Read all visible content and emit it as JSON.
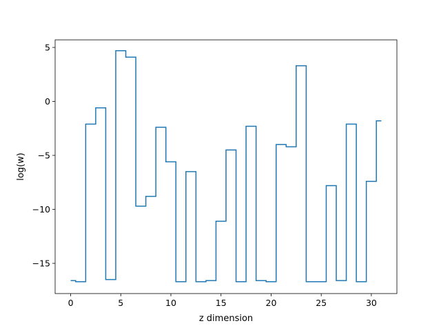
{
  "chart_data": {
    "type": "line",
    "drawstyle": "steps-mid",
    "title": "",
    "xlabel": "z dimension",
    "ylabel": "log(w)",
    "xlim": [
      -1.55,
      32.55
    ],
    "ylim": [
      -17.8,
      5.7
    ],
    "xticks": [
      0,
      5,
      10,
      15,
      20,
      25,
      30
    ],
    "yticks": [
      5,
      0,
      -5,
      -10,
      -15
    ],
    "ytick_labels": [
      "5",
      "0",
      "−5",
      "−10",
      "−15"
    ],
    "grid": false,
    "line_color": "#1f77b4",
    "series": [
      {
        "x": [
          0,
          1,
          2,
          3,
          4,
          5,
          6,
          7,
          8,
          9,
          10,
          11,
          12,
          13,
          14,
          15,
          16,
          17,
          18,
          19,
          20,
          21,
          22,
          23,
          24,
          25,
          26,
          27,
          28,
          29,
          30,
          31
        ],
        "values": [
          -16.6,
          -16.7,
          -2.1,
          -0.6,
          -16.5,
          4.7,
          4.1,
          -9.7,
          -8.8,
          -2.4,
          -5.6,
          -16.7,
          -6.5,
          -16.7,
          -16.6,
          -11.1,
          -4.5,
          -16.7,
          -2.3,
          -16.6,
          -16.7,
          -4.0,
          -4.2,
          3.3,
          -16.7,
          -16.7,
          -7.8,
          -16.6,
          -2.1,
          -16.7,
          -7.4,
          -1.8
        ]
      }
    ]
  }
}
